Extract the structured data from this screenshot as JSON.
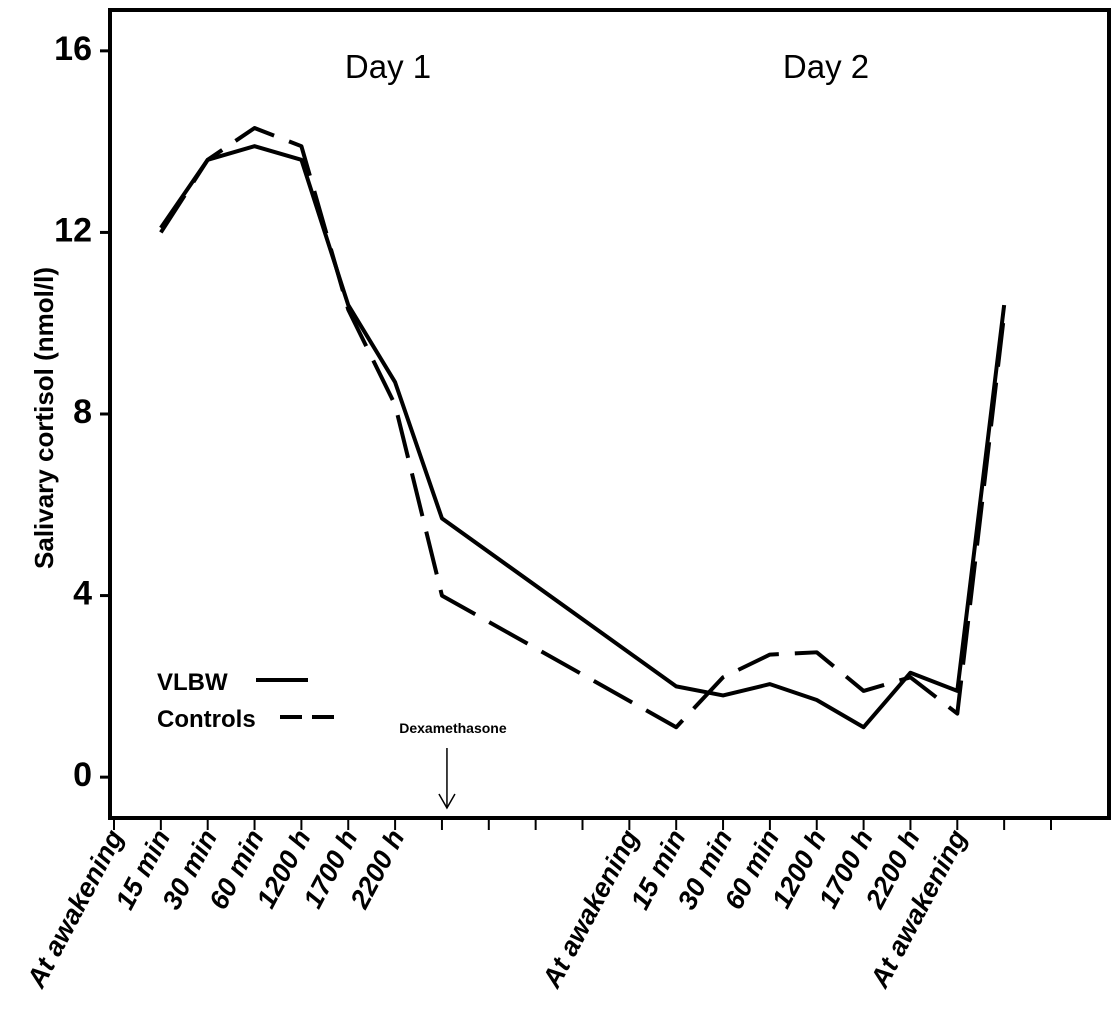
{
  "chart_data": {
    "type": "line",
    "ylabel": "Salivary cortisol (nmol/l)",
    "ylim": [
      -0.9,
      16.9
    ],
    "yticks": [
      0,
      4,
      8,
      12,
      16
    ],
    "grid": false,
    "legend_placement": "bottom-left",
    "x_labels": [
      "At awakening",
      "15 min",
      "30 min",
      "60 min",
      "1200 h",
      "1700 h",
      "2200 h",
      "",
      "",
      "",
      "",
      "At awakening",
      "15 min",
      "30 min",
      "60 min",
      "1200 h",
      "1700 h",
      "2200 h",
      "At awakening",
      "",
      ""
    ],
    "annotations": [
      {
        "text": "Day 1",
        "x": 5
      },
      {
        "text": "Day 2",
        "x": 15
      },
      {
        "text": "Dexamethasone",
        "x": 7
      }
    ],
    "series": [
      {
        "name": "VLBW",
        "style": "solid",
        "x": [
          1,
          2,
          3,
          4,
          5,
          6,
          7,
          12,
          13,
          14,
          15,
          16,
          17,
          18,
          19
        ],
        "y": [
          12.1,
          13.6,
          13.9,
          13.6,
          10.4,
          8.7,
          5.7,
          2.0,
          1.8,
          2.05,
          1.7,
          1.1,
          2.3,
          1.9,
          10.4
        ]
      },
      {
        "name": "Controls",
        "style": "dashed",
        "x": [
          1,
          2,
          3,
          4,
          5,
          6,
          7,
          12,
          13,
          14,
          15,
          16,
          17,
          18,
          19
        ],
        "y": [
          12.0,
          13.6,
          14.3,
          13.9,
          10.3,
          8.2,
          4.0,
          1.1,
          2.2,
          2.7,
          2.75,
          1.9,
          2.2,
          1.4,
          10.2
        ]
      }
    ]
  }
}
